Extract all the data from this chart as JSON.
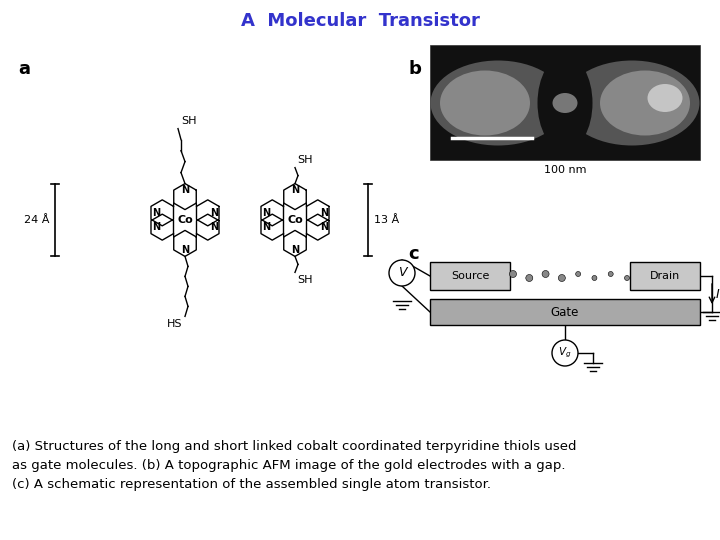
{
  "title": "A  Molecular  Transistor",
  "title_color": "#3333cc",
  "title_fontsize": 13,
  "background_color": "#ffffff",
  "caption": "(a) Structures of the long and short linked cobalt coordinated terpyridine thiols used\nas gate molecules. (b) A topographic AFM image of the gold electrodes with a gap.\n(c) A schematic representation of the assembled single atom transistor.",
  "caption_fontsize": 9.5,
  "label_a": "a",
  "label_b": "b",
  "label_c": "c",
  "label_fontsize": 13,
  "label_fontweight": "bold",
  "dim_24": "24 Å",
  "dim_13": "13 Å",
  "dim_100nm": "100 nm"
}
